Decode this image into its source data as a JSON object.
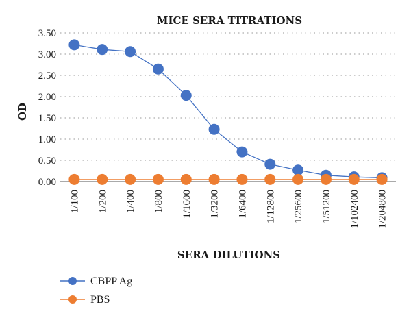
{
  "chart_data": {
    "type": "line",
    "title": "MICE SERA TITRATIONS",
    "xlabel": "SERA DILUTIONS",
    "ylabel": "OD",
    "categories": [
      "1/100",
      "1/200",
      "1/400",
      "1/800",
      "1/1600",
      "1/3200",
      "1/6400",
      "1/12800",
      "1/25600",
      "1/51200",
      "1/102400",
      "1/204800"
    ],
    "ylim": [
      0,
      3.5
    ],
    "yticks": [
      "0.00",
      "0.50",
      "1.00",
      "1.50",
      "2.00",
      "2.50",
      "3.00",
      "3.50"
    ],
    "grid": true,
    "legend_position": "bottom-left",
    "series": [
      {
        "name": "CBPP Ag",
        "color": "#4472C4",
        "values": [
          3.22,
          3.11,
          3.06,
          2.65,
          2.03,
          1.23,
          0.7,
          0.41,
          0.27,
          0.15,
          0.11,
          0.09
        ]
      },
      {
        "name": "PBS",
        "color": "#ED7D31",
        "values": [
          0.05,
          0.05,
          0.05,
          0.05,
          0.05,
          0.05,
          0.05,
          0.05,
          0.05,
          0.05,
          0.05,
          0.05
        ]
      }
    ]
  }
}
